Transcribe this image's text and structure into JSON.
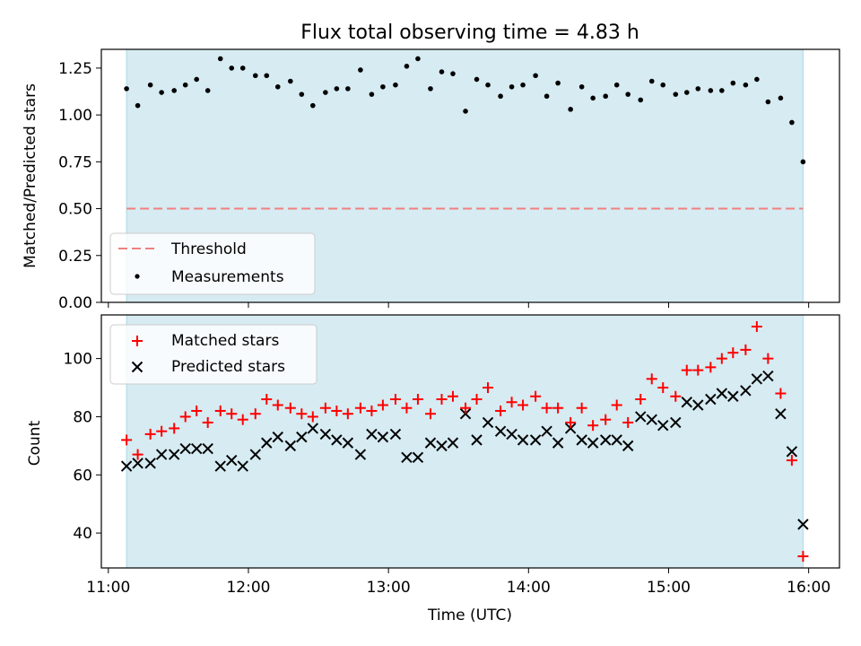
{
  "figure": {
    "title": "Flux total observing time = 4.83 h",
    "xlabel": "Time (UTC)"
  },
  "colors": {
    "shade": "#add8e6",
    "threshold": "#f08080",
    "matched": "#ff0000",
    "predicted": "#000000",
    "measurements": "#000000"
  },
  "chart_data": [
    {
      "type": "scatter",
      "panel": "top",
      "ylabel": "Matched/Predicted stars",
      "xlim_hours": [
        10.95,
        16.22
      ],
      "ylim": [
        0,
        1.35
      ],
      "yticks": [
        "0.00",
        "0.25",
        "0.50",
        "0.75",
        "1.00",
        "1.25"
      ],
      "ytick_values": [
        0,
        0.25,
        0.5,
        0.75,
        1.0,
        1.25
      ],
      "shaded_region_hours": [
        11.13,
        15.96
      ],
      "threshold": 0.5,
      "legend_placement": "lower-left",
      "legend": [
        "Threshold",
        "Measurements"
      ],
      "series": [
        {
          "name": "Measurements",
          "x_hours": [
            11.13,
            11.21,
            11.3,
            11.38,
            11.47,
            11.55,
            11.63,
            11.71,
            11.8,
            11.88,
            11.96,
            12.05,
            12.13,
            12.21,
            12.3,
            12.38,
            12.46,
            12.55,
            12.63,
            12.71,
            12.8,
            12.88,
            12.96,
            13.05,
            13.13,
            13.21,
            13.3,
            13.38,
            13.46,
            13.55,
            13.63,
            13.71,
            13.8,
            13.88,
            13.96,
            14.05,
            14.13,
            14.21,
            14.3,
            14.38,
            14.46,
            14.55,
            14.63,
            14.71,
            14.8,
            14.88,
            14.96,
            15.05,
            15.13,
            15.21,
            15.3,
            15.38,
            15.46,
            15.55,
            15.63,
            15.71,
            15.8,
            15.88,
            15.96
          ],
          "values": [
            1.14,
            1.05,
            1.16,
            1.12,
            1.13,
            1.16,
            1.19,
            1.13,
            1.3,
            1.25,
            1.25,
            1.21,
            1.21,
            1.15,
            1.18,
            1.11,
            1.05,
            1.12,
            1.14,
            1.14,
            1.24,
            1.11,
            1.15,
            1.16,
            1.26,
            1.3,
            1.14,
            1.23,
            1.22,
            1.02,
            1.19,
            1.16,
            1.1,
            1.15,
            1.16,
            1.21,
            1.1,
            1.17,
            1.03,
            1.15,
            1.09,
            1.1,
            1.16,
            1.11,
            1.08,
            1.18,
            1.16,
            1.11,
            1.12,
            1.14,
            1.13,
            1.13,
            1.17,
            1.16,
            1.19,
            1.07,
            1.09,
            0.96,
            0.75
          ]
        }
      ]
    },
    {
      "type": "scatter",
      "panel": "bottom",
      "ylabel": "Count",
      "xlim_hours": [
        10.95,
        16.22
      ],
      "ylim": [
        28,
        115
      ],
      "yticks": [
        "40",
        "60",
        "80",
        "100"
      ],
      "ytick_values": [
        40,
        60,
        80,
        100
      ],
      "xticks": [
        "11:00",
        "12:00",
        "13:00",
        "14:00",
        "15:00",
        "16:00"
      ],
      "xtick_values": [
        11,
        12,
        13,
        14,
        15,
        16
      ],
      "shaded_region_hours": [
        11.13,
        15.96
      ],
      "legend_placement": "upper-left",
      "legend": [
        "Matched stars",
        "Predicted stars"
      ],
      "x_hours": [
        11.13,
        11.21,
        11.3,
        11.38,
        11.47,
        11.55,
        11.63,
        11.71,
        11.8,
        11.88,
        11.96,
        12.05,
        12.13,
        12.21,
        12.3,
        12.38,
        12.46,
        12.55,
        12.63,
        12.71,
        12.8,
        12.88,
        12.96,
        13.05,
        13.13,
        13.21,
        13.3,
        13.38,
        13.46,
        13.55,
        13.63,
        13.71,
        13.8,
        13.88,
        13.96,
        14.05,
        14.13,
        14.21,
        14.3,
        14.38,
        14.46,
        14.55,
        14.63,
        14.71,
        14.8,
        14.88,
        14.96,
        15.05,
        15.13,
        15.21,
        15.3,
        15.38,
        15.46,
        15.55,
        15.63,
        15.71,
        15.8,
        15.88,
        15.96
      ],
      "series": [
        {
          "name": "Matched stars",
          "values": [
            72,
            67,
            74,
            75,
            76,
            80,
            82,
            78,
            82,
            81,
            79,
            81,
            86,
            84,
            83,
            81,
            80,
            83,
            82,
            81,
            83,
            82,
            84,
            86,
            83,
            86,
            81,
            86,
            87,
            83,
            86,
            90,
            82,
            85,
            84,
            87,
            83,
            83,
            78,
            83,
            77,
            79,
            84,
            78,
            86,
            93,
            90,
            87,
            96,
            96,
            97,
            100,
            102,
            103,
            111,
            100,
            88,
            65,
            32
          ]
        },
        {
          "name": "Predicted stars",
          "values": [
            63,
            64,
            64,
            67,
            67,
            69,
            69,
            69,
            63,
            65,
            63,
            67,
            71,
            73,
            70,
            73,
            76,
            74,
            72,
            71,
            67,
            74,
            73,
            74,
            66,
            66,
            71,
            70,
            71,
            81,
            72,
            78,
            75,
            74,
            72,
            72,
            75,
            71,
            76,
            72,
            71,
            72,
            72,
            70,
            80,
            79,
            77,
            78,
            85,
            84,
            86,
            88,
            87,
            89,
            93,
            94,
            81,
            68,
            43
          ]
        }
      ]
    }
  ]
}
